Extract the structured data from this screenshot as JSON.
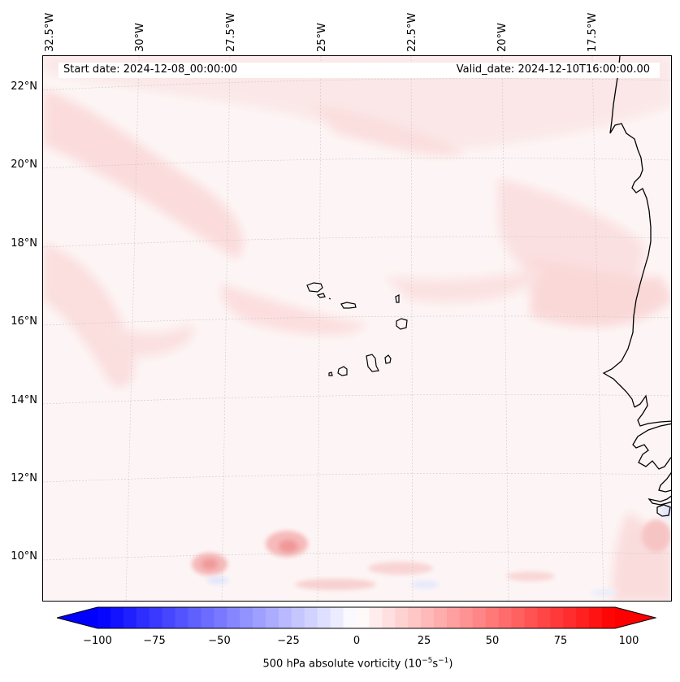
{
  "map": {
    "start_date": "Start date: 2024-12-08_00:00:00",
    "valid_date": "Valid_date: 2024-12-10T16:00:00.00",
    "lon_labels": [
      "32.5°W",
      "30°W",
      "27.5°W",
      "25°W",
      "22.5°W",
      "20°W",
      "17.5°W"
    ],
    "lat_labels": [
      "22°N",
      "20°N",
      "18°N",
      "16°N",
      "14°N",
      "12°N",
      "10°N"
    ],
    "field": "500 hPa absolute vorticity",
    "region": "Cape Verde Islands and West African coast"
  },
  "colorbar": {
    "label_text": "500 hPa absolute vorticity (10",
    "label_exp1": "−5",
    "label_mid": "s",
    "label_exp2": "−1",
    "label_end": ")",
    "ticks": [
      "−100",
      "−75",
      "−50",
      "−25",
      "0",
      "25",
      "50",
      "75",
      "100"
    ],
    "min": -100,
    "max": 100,
    "levels": 40,
    "colormap": "bwr"
  },
  "colors": {
    "low": "#0000ff",
    "mid": "#ffffff",
    "high": "#ff0000"
  }
}
